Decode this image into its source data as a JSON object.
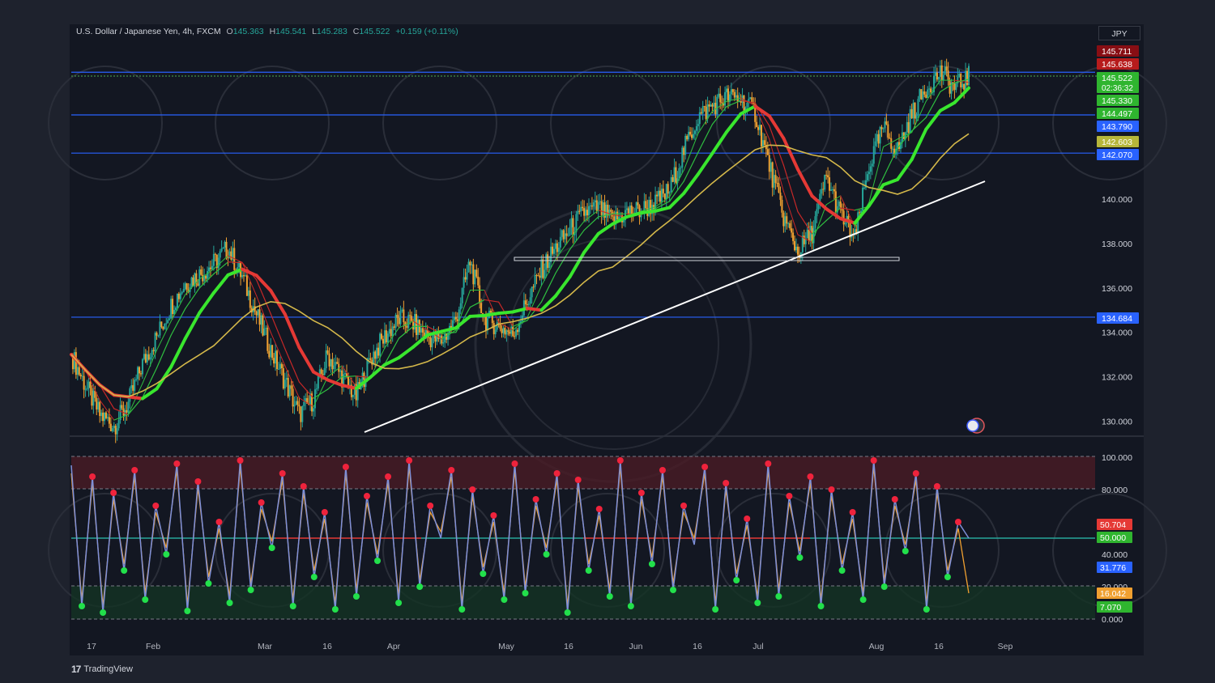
{
  "header": {
    "symbol": "U.S. Dollar / Japanese Yen, 4h, FXCM",
    "open_label": "O",
    "open": "145.363",
    "high_label": "H",
    "high": "145.541",
    "low_label": "L",
    "low": "145.283",
    "close_label": "C",
    "close": "145.522",
    "change": "+0.159 (+0.11%)"
  },
  "currency_button": "JPY",
  "brand": {
    "logo": "17",
    "name": "TradingView"
  },
  "colors": {
    "background": "#131722",
    "up": "#26a69a",
    "grid_level": "#2962ff",
    "trend": "#ffffff"
  },
  "chart_data": [
    {
      "type": "line",
      "title": "U.S. Dollar / Japanese Yen, 4h, FXCM",
      "x_tick_labels": [
        "17",
        "Feb",
        "Mar",
        "16",
        "Apr",
        "May",
        "16",
        "Jun",
        "16",
        "Jul",
        "Aug",
        "16",
        "Sep"
      ],
      "y_tick_labels": [
        "140.000",
        "138.000",
        "136.000",
        "134.000",
        "132.000",
        "130.000"
      ],
      "ylim": [
        129.3,
        146.8
      ],
      "series": [
        {
          "values": [
            133.0,
            131.6,
            130.3,
            129.8,
            130.8,
            132.6,
            133.8,
            135.2,
            136.2,
            136.6,
            137.1,
            137.8,
            136.5,
            134.8,
            133.2,
            131.8,
            130.3,
            131.0,
            133.0,
            132.0,
            131.1,
            132.8,
            133.8,
            134.6,
            134.4,
            133.8,
            133.6,
            134.6,
            137.2,
            134.6,
            134.3,
            133.9,
            135.4,
            136.8,
            137.8,
            138.6,
            139.4,
            139.6,
            139.0,
            139.4,
            139.5,
            139.8,
            140.4,
            142.2,
            143.7,
            144.2,
            144.6,
            144.5,
            143.9,
            141.5,
            139.2,
            137.6,
            138.5,
            141.0,
            139.3,
            138.2,
            141.5,
            143.2,
            142.2,
            143.8,
            145.0,
            145.7,
            145.0,
            145.5
          ]
        },
        {
          "name": "145.330",
          "values": []
        },
        {
          "name": "144.497",
          "values": []
        },
        {
          "name": "142.603",
          "values": []
        }
      ],
      "horizontal_levels": [
        "145.711",
        "143.790",
        "142.070",
        "134.684"
      ],
      "last_price": "145.522",
      "countdown": "02:36:32",
      "price_labels": [
        "145.711",
        "145.638",
        "145.522",
        "145.330",
        "144.497",
        "143.790",
        "142.603",
        "142.070",
        "134.684"
      ]
    },
    {
      "type": "line",
      "y_tick_labels": [
        "100.000",
        "80.000",
        "60.000",
        "40.000",
        "20.000",
        "0.000"
      ],
      "ylim": [
        0,
        100
      ],
      "bands": {
        "upper": 80,
        "middle": 50,
        "lower": 20
      },
      "series": [
        {
          "values": [
            95,
            8,
            88,
            4,
            78,
            30,
            92,
            12,
            70,
            40,
            96,
            5,
            85,
            22,
            60,
            10,
            98,
            18,
            72,
            44,
            90,
            8,
            82,
            26,
            66,
            6,
            94,
            14,
            76,
            36,
            88,
            10,
            98,
            20,
            70,
            50,
            92,
            6,
            80,
            28,
            64,
            12,
            96,
            16,
            74,
            40,
            90,
            4,
            86,
            30,
            68,
            14,
            98,
            8,
            78,
            34,
            92,
            18,
            70,
            46,
            94,
            6,
            84,
            24,
            62,
            10,
            96,
            14,
            76,
            38,
            88,
            8,
            80,
            30,
            66,
            12,
            98,
            20,
            74,
            42,
            90,
            6,
            82,
            26,
            60,
            50
          ]
        },
        {
          "values": [
            90,
            12,
            84,
            8,
            74,
            34,
            88,
            16,
            66,
            44,
            92,
            9,
            81,
            26,
            56,
            14,
            94,
            22,
            68,
            48,
            86,
            12,
            78,
            30,
            62,
            10,
            90,
            18,
            72,
            40,
            84,
            14,
            94,
            24,
            66,
            54,
            88,
            10,
            76,
            32,
            60,
            16,
            92,
            20,
            70,
            44,
            86,
            8,
            82,
            34,
            64,
            18,
            94,
            12,
            74,
            38,
            88,
            22,
            66,
            50,
            90,
            10,
            80,
            28,
            58,
            14,
            92,
            18,
            72,
            42,
            84,
            12,
            76,
            34,
            62,
            16,
            94,
            24,
            70,
            46,
            86,
            10,
            78,
            30,
            56,
            16
          ]
        }
      ],
      "price_labels": [
        "50.704",
        "50.000",
        "31.776",
        "16.042",
        "7.070"
      ]
    }
  ]
}
